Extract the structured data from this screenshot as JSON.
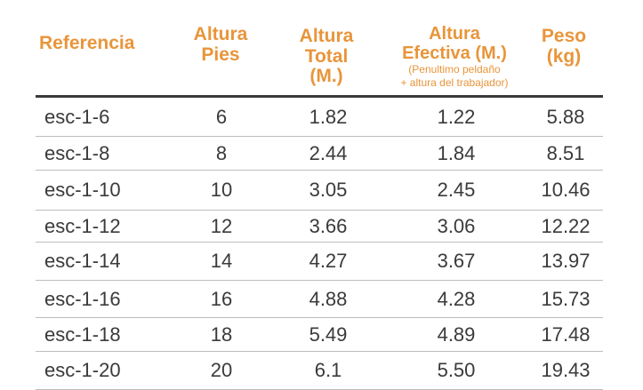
{
  "table": {
    "headers": {
      "referencia": "Referencia",
      "altura_pies": [
        "Altura",
        "Pies"
      ],
      "altura_total": [
        "Altura",
        "Total",
        "(M.)"
      ],
      "altura_efectiva": [
        "Altura",
        "Efectiva (M.)"
      ],
      "altura_efectiva_note": [
        "(Penultimo peldaño",
        "+ altura del trabajador)"
      ],
      "peso": [
        "Peso",
        "(kg)"
      ]
    },
    "rows": [
      {
        "ref": "esc-1-6",
        "pies": "6",
        "total": "1.82",
        "efectiva": "1.22",
        "peso": "5.88"
      },
      {
        "ref": "esc-1-8",
        "pies": "8",
        "total": "2.44",
        "efectiva": "1.84",
        "peso": "8.51"
      },
      {
        "ref": "esc-1-10",
        "pies": "10",
        "total": "3.05",
        "efectiva": "2.45",
        "peso": "10.46"
      },
      {
        "ref": "esc-1-12",
        "pies": "12",
        "total": "3.66",
        "efectiva": "3.06",
        "peso": "12.22"
      },
      {
        "ref": "esc-1-14",
        "pies": "14",
        "total": "4.27",
        "efectiva": "3.67",
        "peso": "13.97"
      },
      {
        "ref": "esc-1-16",
        "pies": "16",
        "total": "4.88",
        "efectiva": "4.28",
        "peso": "15.73"
      },
      {
        "ref": "esc-1-18",
        "pies": "18",
        "total": "5.49",
        "efectiva": "4.89",
        "peso": "17.48"
      },
      {
        "ref": "esc-1-20",
        "pies": "20",
        "total": "6.1",
        "efectiva": "5.50",
        "peso": "19.43"
      }
    ]
  },
  "colors": {
    "header_orange": "#e8953a",
    "body_text": "#3a3a3a"
  }
}
